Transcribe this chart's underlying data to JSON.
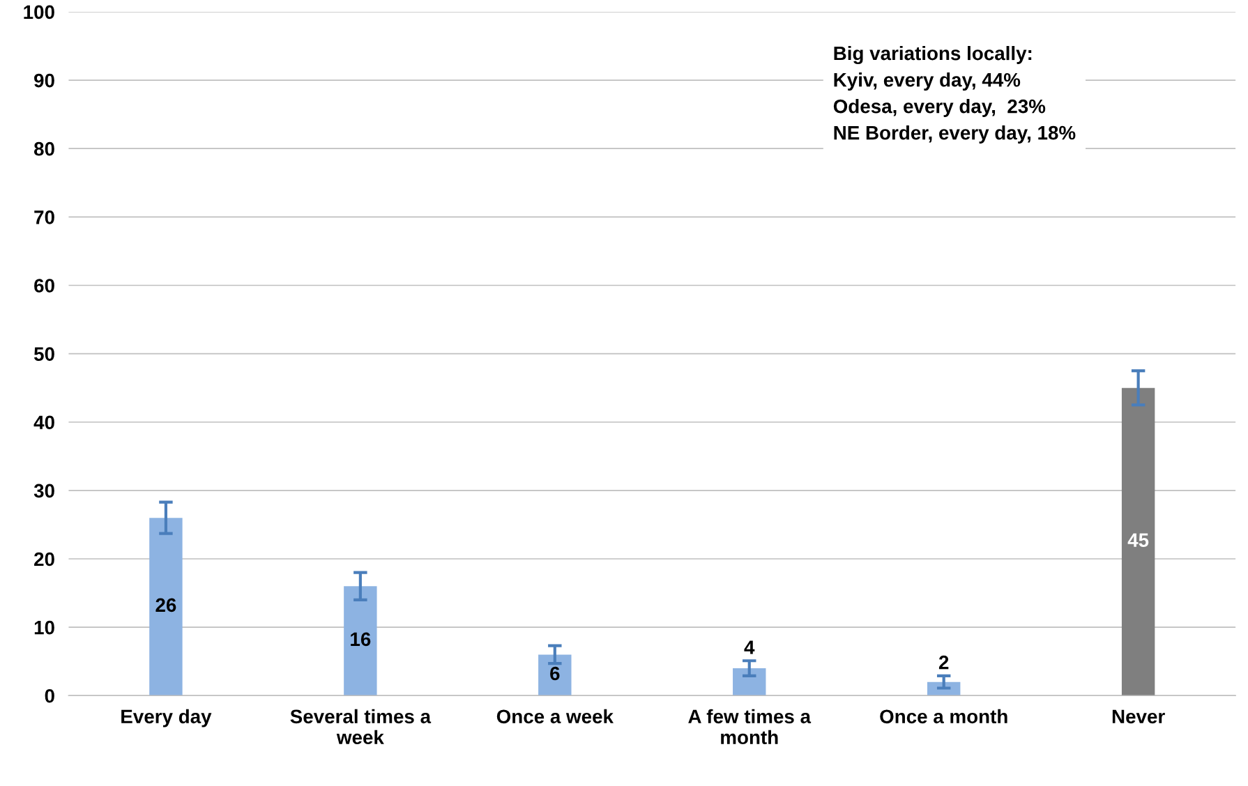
{
  "chart_data": {
    "type": "bar",
    "categories": [
      "Every day",
      "Several times a week",
      "Once a week",
      "A few times a month",
      "Once a month",
      "Never"
    ],
    "values": [
      26,
      16,
      6,
      4,
      2,
      45
    ],
    "errors": [
      2.3,
      2,
      1.3,
      1.1,
      0.9,
      2.5
    ],
    "colors": [
      "#8db3e2",
      "#8db3e2",
      "#8db3e2",
      "#8db3e2",
      "#8db3e2",
      "#7f7f7f"
    ],
    "data_labels": true,
    "ylim": [
      0,
      100
    ],
    "yticks": [
      0,
      10,
      20,
      30,
      40,
      50,
      60,
      70,
      80,
      90,
      100
    ],
    "grid": "y",
    "annotations": [
      "Big variations locally:\nKyiv, every day, 44%\nOdesa, every day,  23%\nNE Border, every day, 18%"
    ]
  }
}
